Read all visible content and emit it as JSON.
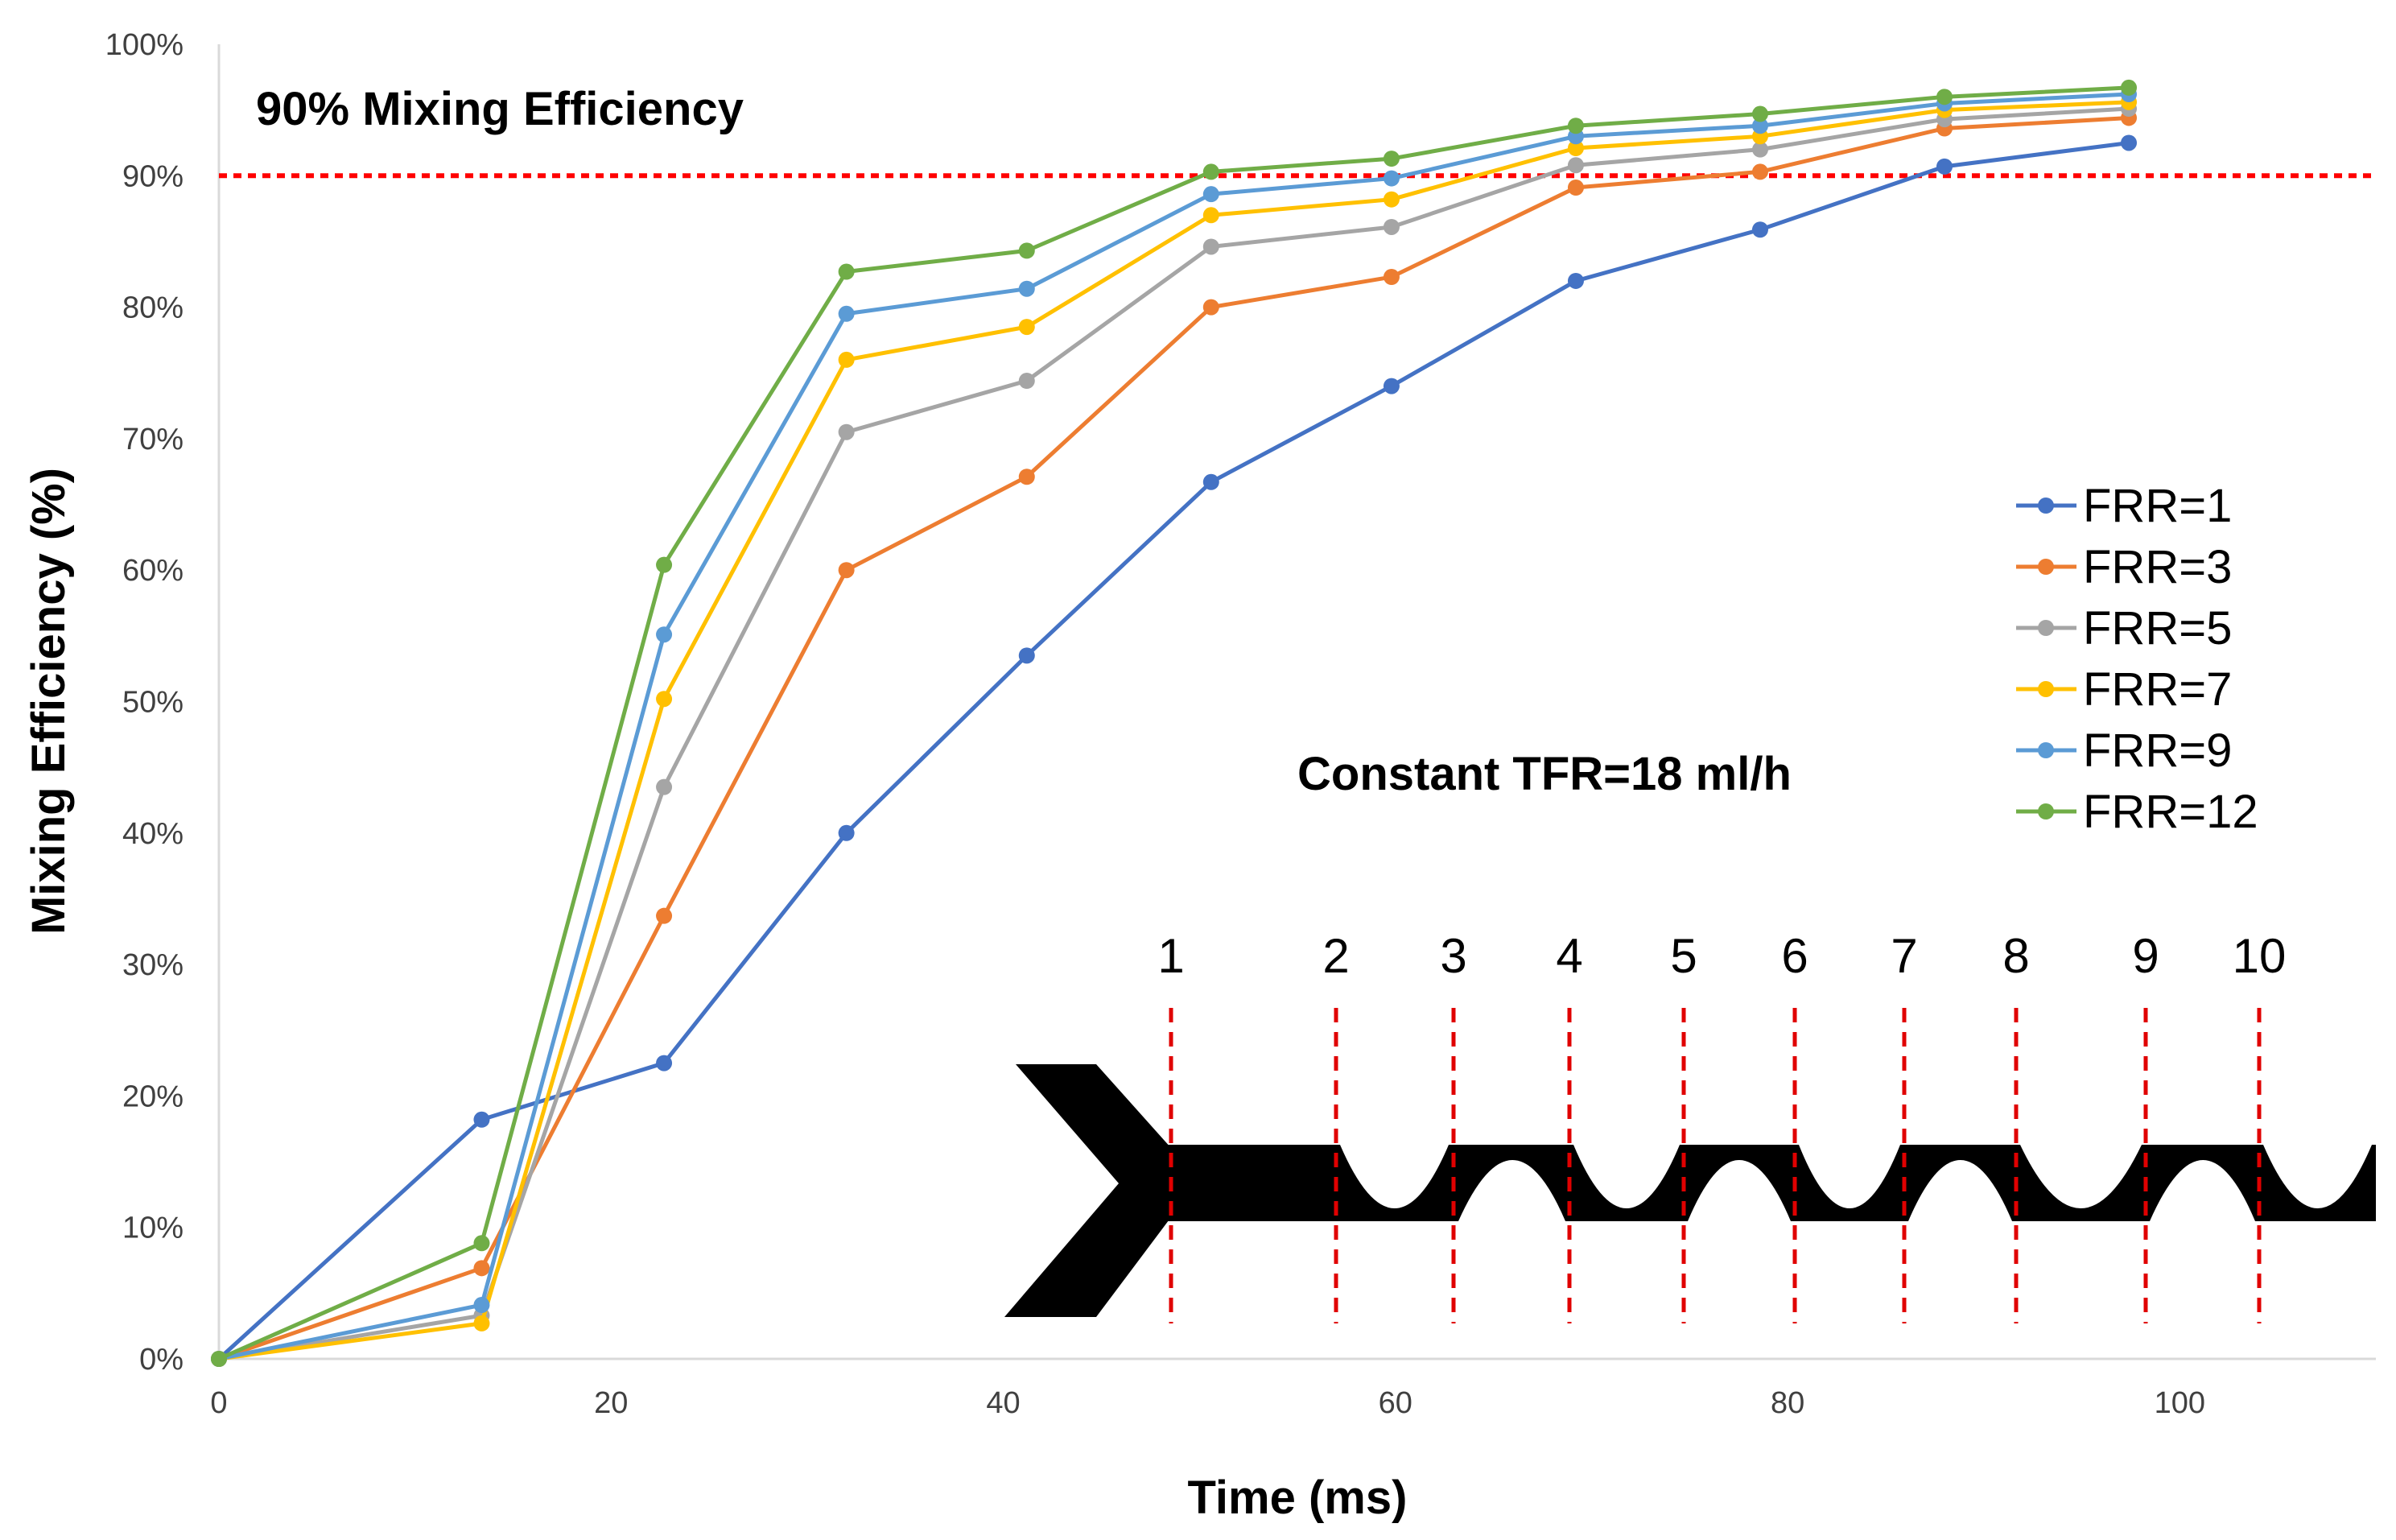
{
  "chart_data": {
    "type": "line",
    "title": "",
    "xlabel": "Time (ms)",
    "ylabel": "Mixing Efficiency (%)",
    "xlim": [
      0,
      110
    ],
    "ylim": [
      0,
      100
    ],
    "x_ticks": [
      0,
      20,
      40,
      60,
      80,
      100
    ],
    "y_ticks": [
      0,
      10,
      20,
      30,
      40,
      50,
      60,
      70,
      80,
      90,
      100
    ],
    "y_tick_labels": [
      "0%",
      "10%",
      "20%",
      "30%",
      "40%",
      "50%",
      "60%",
      "70%",
      "80%",
      "90%",
      "100%"
    ],
    "grid": false,
    "legend_position": "right",
    "x": [
      0,
      13.4,
      22.7,
      32.0,
      41.2,
      50.6,
      59.8,
      69.2,
      78.6,
      88.0,
      97.4
    ],
    "series": [
      {
        "name": "FRR=1",
        "color": "#4472C4",
        "values": [
          0,
          18.2,
          22.5,
          40.0,
          53.5,
          66.7,
          74.0,
          82.0,
          85.9,
          90.7,
          92.5
        ]
      },
      {
        "name": "FRR=3",
        "color": "#ED7D31",
        "values": [
          0,
          6.9,
          33.7,
          60.0,
          67.1,
          80.0,
          82.3,
          89.1,
          90.3,
          93.6,
          94.4
        ]
      },
      {
        "name": "FRR=5",
        "color": "#A5A5A5",
        "values": [
          0,
          3.3,
          43.5,
          70.5,
          74.4,
          84.6,
          86.1,
          90.8,
          92.0,
          94.3,
          95.1
        ]
      },
      {
        "name": "FRR=7",
        "color": "#FFC000",
        "values": [
          0,
          2.7,
          50.2,
          76.0,
          78.5,
          87.0,
          88.2,
          92.1,
          93.0,
          95.0,
          95.6
        ]
      },
      {
        "name": "FRR=9",
        "color": "#5B9BD5",
        "values": [
          0,
          4.1,
          55.1,
          79.5,
          81.4,
          88.6,
          89.8,
          93.0,
          93.8,
          95.5,
          96.2
        ]
      },
      {
        "name": "FRR=12",
        "color": "#70AD47",
        "values": [
          0,
          8.8,
          60.4,
          82.7,
          84.3,
          90.3,
          91.3,
          93.8,
          94.7,
          96.0,
          96.7
        ]
      }
    ],
    "reference_line": {
      "y": 90,
      "color": "#FF0000",
      "label": "90% Mixing Efficiency"
    },
    "annotation": "Constant TFR=18 ml/h",
    "inset": {
      "position_labels": [
        "1",
        "2",
        "3",
        "4",
        "5",
        "6",
        "7",
        "8",
        "9",
        "10"
      ],
      "marker_color": "#E00000",
      "channel_color": "#000000"
    }
  }
}
